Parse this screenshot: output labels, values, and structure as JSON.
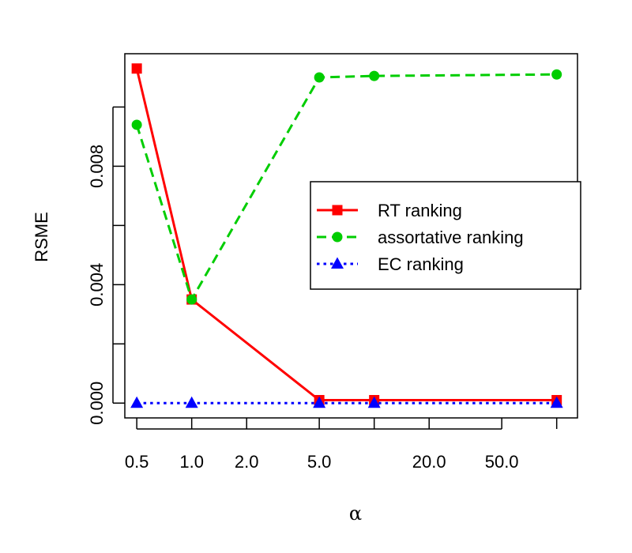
{
  "chart_data": {
    "type": "line",
    "title": "",
    "xlabel": "α",
    "ylabel": "RSME",
    "x_scale": "log",
    "x_ticks": [
      0.5,
      1,
      2,
      5,
      20,
      50
    ],
    "x_tick_labels": [
      "0.5",
      "1.0",
      "2.0",
      "5.0",
      "20.0",
      "50.0"
    ],
    "y_ticks": [
      0,
      0.002,
      0.004,
      0.006,
      0.008,
      0.01
    ],
    "y_tick_labels": [
      "0.000",
      "",
      "0.004",
      "",
      "0.008",
      ""
    ],
    "xlim": [
      0.43,
      130
    ],
    "ylim": [
      -0.0005,
      0.0118
    ],
    "grid": false,
    "legend_position": "right",
    "x": [
      0.5,
      1,
      5,
      10,
      100
    ],
    "series": [
      {
        "name": "RT ranking",
        "color": "#ff0000",
        "dash": "solid",
        "marker": "square",
        "values": [
          0.0113,
          0.0035,
          0.0001,
          0.0001,
          0.0001
        ]
      },
      {
        "name": "assortative ranking",
        "color": "#00cd00",
        "dash": "dashed",
        "marker": "circle",
        "values": [
          0.0094,
          0.0035,
          0.011,
          0.01105,
          0.0111
        ]
      },
      {
        "name": "EC ranking",
        "color": "#0000ff",
        "dash": "dotted",
        "marker": "triangle",
        "values": [
          0.0,
          0.0,
          0.0,
          0.0,
          0.0
        ]
      }
    ]
  }
}
